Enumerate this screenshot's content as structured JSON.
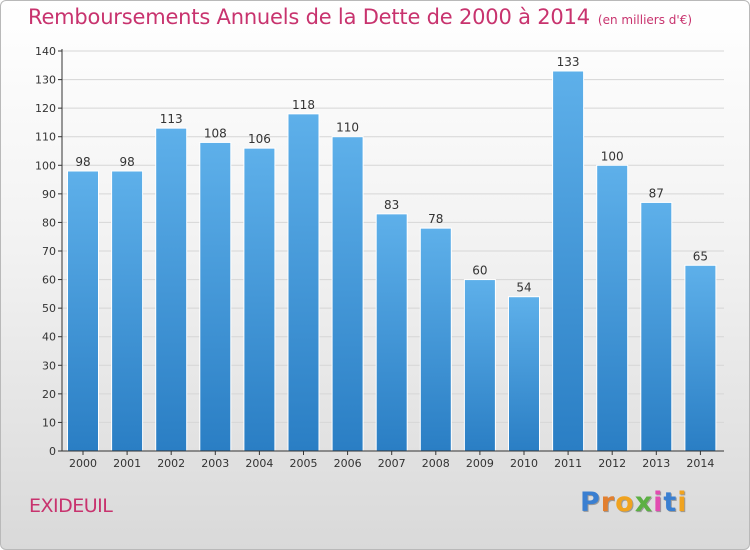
{
  "header": {
    "title": "Remboursements Annuels de la Dette de 2000 à 2014",
    "unit": "(en milliers d'€)"
  },
  "footer": {
    "city": "EXIDEUIL",
    "logo_text": "Proxiti",
    "logo_letters": [
      {
        "ch": "P",
        "color": "#3a7fd1"
      },
      {
        "ch": "r",
        "color": "#e27f2f"
      },
      {
        "ch": "o",
        "color": "#f0a31f"
      },
      {
        "ch": "x",
        "color": "#5cb044"
      },
      {
        "ch": "i",
        "color": "#e24bb1"
      },
      {
        "ch": "t",
        "color": "#3a7fd1"
      },
      {
        "ch": "i",
        "color": "#f0a31f"
      }
    ]
  },
  "colors": {
    "accent": "#c8336e",
    "bar_top": "#5eb0ea",
    "bar_bottom": "#2a7ec4",
    "grid": "#d6d6d6",
    "axis": "#333333"
  },
  "chart_data": {
    "type": "bar",
    "title": "Remboursements Annuels de la Dette de 2000 à 2014",
    "xlabel": "",
    "ylabel": "",
    "categories": [
      "2000",
      "2001",
      "2002",
      "2003",
      "2004",
      "2005",
      "2006",
      "2007",
      "2008",
      "2009",
      "2010",
      "2011",
      "2012",
      "2013",
      "2014"
    ],
    "values": [
      98,
      98,
      113,
      108,
      106,
      118,
      110,
      83,
      78,
      60,
      54,
      133,
      100,
      87,
      65
    ],
    "ylim": [
      0,
      140
    ],
    "yticks": [
      0,
      10,
      20,
      30,
      40,
      50,
      60,
      70,
      80,
      90,
      100,
      110,
      120,
      130,
      140
    ],
    "grid": true,
    "legend": "none"
  }
}
